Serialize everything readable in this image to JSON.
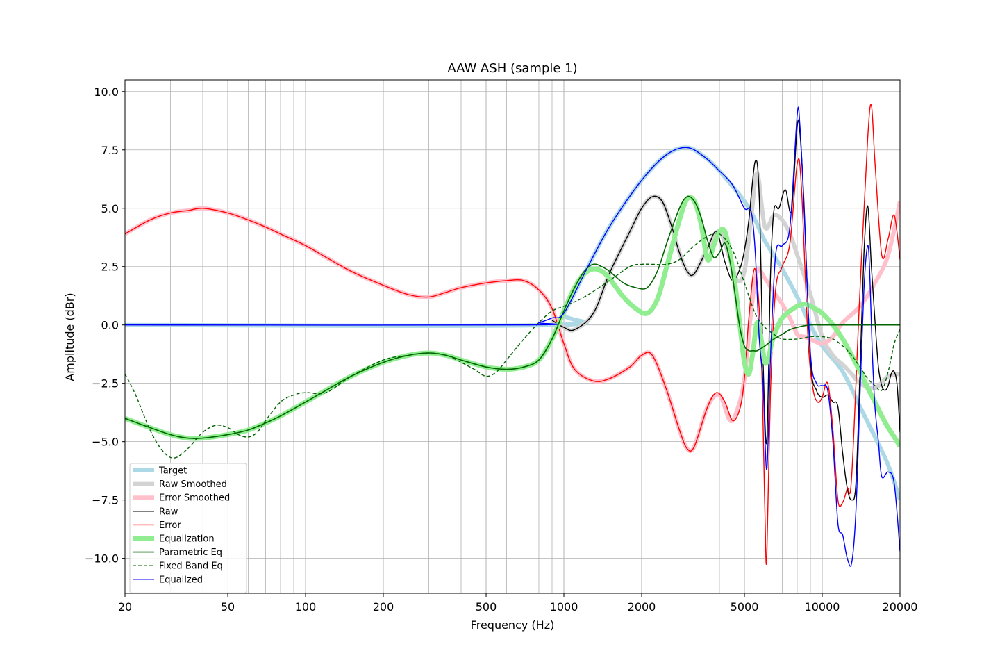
{
  "chart_data": {
    "type": "line",
    "title": "AAW ASH (sample 1)",
    "xlabel": "Frequency (Hz)",
    "ylabel": "Amplitude (dBr)",
    "xscale": "log",
    "xlim": [
      20,
      20000
    ],
    "ylim": [
      -11.5,
      10.5
    ],
    "grid": true,
    "legend_position": "lower-left",
    "x_ticks": [
      20,
      50,
      100,
      200,
      500,
      1000,
      2000,
      5000,
      10000,
      20000
    ],
    "x_tick_labels": [
      "20",
      "50",
      "100",
      "200",
      "500",
      "1000",
      "2000",
      "5000",
      "10000",
      "20000"
    ],
    "y_ticks": [
      -10,
      -7.5,
      -5,
      -2.5,
      0,
      2.5,
      5,
      7.5,
      10
    ],
    "y_tick_labels": [
      "−10.0",
      "−7.5",
      "−5.0",
      "−2.5",
      "0.0",
      "2.5",
      "5.0",
      "7.5",
      "10.0"
    ],
    "series": [
      {
        "name": "Target",
        "color": "#add8e6",
        "width": 6,
        "dash": "",
        "x": [
          20,
          900,
          1000,
          1200,
          1500,
          2000,
          2500,
          3000,
          3500,
          4000,
          5000,
          5500,
          6000,
          7000,
          8000,
          9000,
          10000,
          12000,
          14000,
          16000,
          18000,
          20000
        ],
        "y": [
          0,
          0,
          0.5,
          2.2,
          4.2,
          6.2,
          7.3,
          7.6,
          7.2,
          6.6,
          5.3,
          4.5,
          3.6,
          2.4,
          1.2,
          0,
          -0.9,
          -2.0,
          -3.5,
          -4.8,
          -6.0,
          -7.5
        ]
      },
      {
        "name": "Raw Smoothed",
        "color": "#d3d3d3",
        "width": 6,
        "dash": "",
        "x": [
          900,
          1000,
          1100,
          1300,
          1500,
          1800,
          2000,
          2200,
          2400,
          2600,
          2800,
          3000,
          3200,
          3600,
          4000,
          4400,
          4700,
          5000,
          5300,
          5600,
          6000,
          6500,
          7000,
          7500,
          8000,
          9000,
          10000,
          11000,
          12000,
          13000,
          14000,
          16000,
          18000,
          20000
        ],
        "y": [
          0.2,
          -0.1,
          -0.2,
          0.5,
          2.2,
          4.0,
          5.0,
          5.5,
          5.3,
          4.3,
          3.1,
          2.3,
          2.2,
          3.3,
          4.0,
          2.8,
          1.9,
          2.3,
          4.5,
          6.5,
          4.2,
          4.7,
          4.5,
          3.9,
          3.0,
          1.3,
          -0.5,
          -1.3,
          -1.7,
          -2.1,
          -2.5,
          -2.7,
          -2.2,
          -2.1
        ]
      },
      {
        "name": "Error Smoothed",
        "color": "#ffc0cb",
        "width": 6,
        "dash": "",
        "x": [
          20,
          25,
          30,
          35,
          40,
          50,
          60,
          70,
          80,
          100,
          120,
          150,
          200,
          250,
          300,
          350,
          400,
          500,
          600,
          700,
          800,
          900,
          1000,
          1100,
          1300,
          1500,
          1800,
          2000,
          2200,
          2500,
          2800,
          3000,
          3200,
          3600,
          4000,
          4400,
          4700,
          5000,
          5300,
          5600,
          6000,
          6500,
          7000,
          7500,
          8000,
          8500,
          9000,
          10000,
          11000,
          12000,
          14000,
          16000,
          18000,
          20000
        ],
        "y": [
          3.9,
          4.5,
          4.8,
          4.9,
          5.0,
          4.8,
          4.5,
          4.2,
          3.9,
          3.4,
          2.9,
          2.3,
          1.7,
          1.3,
          1.2,
          1.4,
          1.6,
          1.8,
          1.9,
          1.9,
          1.5,
          0.7,
          -0.8,
          -1.9,
          -2.4,
          -2.3,
          -1.8,
          -1.3,
          -1.3,
          -2.8,
          -4.5,
          -5.3,
          -5.2,
          -3.5,
          -3.0,
          -4.1,
          -3.6,
          -2.3,
          0.5,
          2.3,
          2.0,
          1.4,
          0.9,
          0.3,
          -0.4,
          -0.5,
          -0.6,
          -0.8,
          -0.5,
          0.1,
          0.8,
          1.8,
          3.0,
          5.3
        ]
      },
      {
        "name": "Raw",
        "color": "#000000",
        "width": 1.4,
        "dash": "",
        "x": [
          900,
          1000,
          1100,
          1300,
          1500,
          1800,
          2000,
          2200,
          2400,
          2600,
          2800,
          3000,
          3200,
          3600,
          3900,
          4200,
          4500,
          4800,
          5000,
          5200,
          5500,
          5700,
          5900,
          6100,
          6300,
          6500,
          6800,
          7200,
          7600,
          8000,
          8200,
          8500,
          9000,
          9500,
          10000,
          10500,
          11000,
          11500,
          12000,
          12500,
          13000,
          13500,
          14000,
          14500,
          15000,
          15500,
          16000,
          16500,
          17000,
          17500,
          18000,
          18500,
          19000,
          19500,
          20000
        ],
        "y": [
          0.2,
          -0.1,
          -0.2,
          0.5,
          2.2,
          4.0,
          5.0,
          5.5,
          5.3,
          4.3,
          3.1,
          2.3,
          2.2,
          3.3,
          4.0,
          2.7,
          1.9,
          2.4,
          3.2,
          4.5,
          7.0,
          5.6,
          -1.5,
          -5.0,
          2.0,
          4.9,
          5.0,
          5.8,
          4.9,
          8.5,
          8.2,
          5.2,
          -1.5,
          -2.8,
          -3.1,
          -3.0,
          -3.3,
          -3.5,
          -5.5,
          -7.0,
          -7.5,
          -6.8,
          -2.0,
          3.0,
          5.1,
          2.5,
          0.2,
          -1.8,
          -2.6,
          -2.8,
          -2.6,
          -2.1,
          -2.0,
          -2.6,
          -4.6
        ]
      },
      {
        "name": "Error",
        "color": "#ff0000",
        "width": 1.4,
        "dash": "",
        "x": [
          20,
          25,
          30,
          35,
          40,
          50,
          60,
          70,
          80,
          100,
          120,
          150,
          200,
          250,
          300,
          350,
          400,
          500,
          600,
          700,
          800,
          900,
          1000,
          1100,
          1300,
          1500,
          1800,
          2000,
          2200,
          2500,
          2800,
          3000,
          3200,
          3600,
          3900,
          4200,
          4500,
          4800,
          5000,
          5200,
          5500,
          5800,
          6000,
          6100,
          6300,
          6600,
          7000,
          7500,
          8000,
          8300,
          8800,
          9200,
          9600,
          10000,
          10500,
          11000,
          11500,
          12000,
          12500,
          13000,
          14000,
          15000,
          15500,
          16000,
          17000,
          18000,
          19000,
          20000
        ],
        "y": [
          3.9,
          4.5,
          4.8,
          4.9,
          5.0,
          4.8,
          4.5,
          4.2,
          3.9,
          3.4,
          2.9,
          2.3,
          1.7,
          1.3,
          1.2,
          1.4,
          1.6,
          1.8,
          1.9,
          1.9,
          1.5,
          0.7,
          -0.8,
          -1.9,
          -2.4,
          -2.3,
          -1.8,
          -1.3,
          -1.3,
          -2.8,
          -4.5,
          -5.3,
          -5.2,
          -3.5,
          -2.9,
          -3.3,
          -4.1,
          -3.6,
          -2.3,
          0.3,
          2.4,
          -1.0,
          -8.0,
          -10.0,
          -3.0,
          1.5,
          2.5,
          3.5,
          6.9,
          6.0,
          -0.5,
          -2.7,
          -3.3,
          -3.1,
          -2.5,
          -4.5,
          -7.5,
          -7.6,
          -7.0,
          -6.5,
          1.5,
          8.0,
          9.4,
          7.0,
          3.0,
          3.7,
          4.7,
          2.8
        ]
      },
      {
        "name": "Equalization",
        "color": "#90ee90",
        "width": 7,
        "dash": "",
        "x": [
          20,
          25,
          30,
          35,
          40,
          50,
          60,
          70,
          80,
          100,
          120,
          150,
          200,
          250,
          300,
          350,
          400,
          500,
          600,
          700,
          800,
          900,
          1000,
          1100,
          1200,
          1300,
          1400,
          1500,
          1700,
          1900,
          2100,
          2300,
          2500,
          2800,
          3000,
          3200,
          3400,
          3600,
          3800,
          4000,
          4200,
          4400,
          4600,
          4800,
          5000,
          5200,
          5400,
          5600,
          5800,
          6000,
          6200,
          6400,
          6700,
          7000,
          7500,
          8000,
          8500,
          9000,
          10000,
          11000,
          12000,
          13000,
          14000,
          15000,
          16000,
          17000,
          18000,
          19000,
          20000
        ],
        "y": [
          -4.0,
          -4.4,
          -4.7,
          -4.85,
          -4.85,
          -4.7,
          -4.5,
          -4.2,
          -3.9,
          -3.3,
          -2.8,
          -2.2,
          -1.6,
          -1.3,
          -1.2,
          -1.3,
          -1.5,
          -1.8,
          -1.9,
          -1.8,
          -1.5,
          -0.6,
          0.6,
          1.6,
          2.2,
          2.4,
          2.3,
          2.0,
          1.2,
          0.7,
          0.5,
          1.1,
          2.5,
          4.5,
          5.4,
          5.3,
          4.3,
          2.8,
          3.4,
          4.0,
          4.0,
          3.0,
          1.7,
          0.0,
          -1.6,
          -2.1,
          -1.1,
          0.1,
          -0.6,
          -1.6,
          -1.4,
          -0.7,
          -0.1,
          0.3,
          0.6,
          0.8,
          0.9,
          0.8,
          0.5,
          0.0,
          -0.6,
          -1.3,
          -2.0,
          -2.7,
          -3.3,
          -3.9,
          -4.4,
          -4.8,
          -5.2
        ]
      },
      {
        "name": "Parametric Eq",
        "color": "#006400",
        "width": 1.6,
        "dash": "",
        "x": [
          20,
          25,
          30,
          35,
          40,
          50,
          60,
          70,
          80,
          100,
          120,
          150,
          200,
          250,
          300,
          350,
          400,
          500,
          600,
          700,
          800,
          900,
          1000,
          1100,
          1200,
          1300,
          1400,
          1500,
          1700,
          1900,
          2100,
          2300,
          2500,
          2800,
          3000,
          3200,
          3400,
          3600,
          3800,
          4000,
          4200,
          4400,
          4600,
          4800,
          5000,
          5200,
          5400,
          5600,
          6000,
          6500,
          7000,
          7500,
          8000,
          9000,
          10000,
          12000,
          15000,
          20000
        ],
        "y": [
          -4.0,
          -4.4,
          -4.7,
          -4.85,
          -4.85,
          -4.7,
          -4.5,
          -4.2,
          -3.9,
          -3.3,
          -2.8,
          -2.2,
          -1.6,
          -1.3,
          -1.2,
          -1.3,
          -1.5,
          -1.8,
          -1.9,
          -1.8,
          -1.5,
          -0.6,
          0.6,
          1.6,
          2.3,
          2.6,
          2.5,
          2.3,
          1.8,
          1.6,
          1.6,
          2.3,
          3.5,
          5.0,
          5.5,
          5.3,
          4.6,
          3.6,
          2.9,
          3.1,
          3.5,
          2.7,
          1.3,
          -0.1,
          -0.9,
          -1.1,
          -1.1,
          -1.1,
          -0.9,
          -0.6,
          -0.4,
          -0.2,
          -0.1,
          0.0,
          0.0,
          0.0,
          0.0,
          0.0
        ]
      },
      {
        "name": "Fixed Band Eq",
        "color": "#006400",
        "width": 1.4,
        "dash": "5,3",
        "x": [
          20,
          22,
          25,
          28,
          31,
          35,
          40,
          45,
          50,
          55,
          60,
          65,
          70,
          80,
          90,
          100,
          120,
          150,
          200,
          250,
          300,
          350,
          400,
          450,
          500,
          550,
          600,
          700,
          800,
          900,
          1000,
          1200,
          1500,
          1800,
          2000,
          2200,
          2500,
          2800,
          3200,
          3600,
          4000,
          4500,
          5000,
          5500,
          6000,
          6500,
          7000,
          8000,
          9000,
          10000,
          11000,
          12000,
          13000,
          14000,
          15000,
          16000,
          17000,
          18000,
          19000,
          20000
        ],
        "y": [
          -2.1,
          -3.0,
          -4.5,
          -5.4,
          -5.7,
          -5.3,
          -4.6,
          -4.3,
          -4.4,
          -4.7,
          -4.8,
          -4.6,
          -4.1,
          -3.3,
          -3.0,
          -2.9,
          -2.9,
          -2.2,
          -1.5,
          -1.3,
          -1.2,
          -1.3,
          -1.6,
          -1.9,
          -2.2,
          -2.0,
          -1.5,
          -0.6,
          0.1,
          0.6,
          0.8,
          1.2,
          1.9,
          2.5,
          2.6,
          2.6,
          2.6,
          2.8,
          3.4,
          3.8,
          3.9,
          3.2,
          1.8,
          0.5,
          -0.1,
          -0.4,
          -0.6,
          -0.6,
          -0.5,
          -0.5,
          -0.6,
          -0.9,
          -1.3,
          -1.8,
          -2.3,
          -2.6,
          -2.8,
          -2.0,
          -0.8,
          -0.2
        ]
      },
      {
        "name": "Equalized",
        "color": "#0000ff",
        "width": 1.4,
        "dash": "",
        "x": [
          20,
          700,
          800,
          900,
          1000,
          1200,
          1500,
          2000,
          2500,
          3000,
          3500,
          4000,
          4500,
          5000,
          5300,
          5500,
          5700,
          5900,
          6100,
          6300,
          6600,
          7000,
          7500,
          8000,
          8200,
          8500,
          9000,
          9500,
          10000,
          10500,
          11000,
          11500,
          12000,
          12500,
          13000,
          13500,
          14000,
          14500,
          15000,
          15300,
          15600,
          16000,
          16500,
          17000,
          18000,
          19000,
          20000
        ],
        "y": [
          0,
          0,
          0.1,
          0.3,
          0.5,
          2.2,
          4.2,
          6.2,
          7.3,
          7.6,
          7.2,
          6.6,
          6.0,
          5.0,
          4.9,
          3.2,
          -0.5,
          -2.5,
          -6.2,
          -1.5,
          3.0,
          3.4,
          4.2,
          9.0,
          8.5,
          5.0,
          -1.2,
          -2.5,
          -2.6,
          -2.8,
          -5.0,
          -8.5,
          -9.0,
          -10.0,
          -10.2,
          -8.0,
          -3.0,
          1.5,
          3.4,
          2.0,
          -1.0,
          -3.5,
          -5.0,
          -6.5,
          -6.3,
          -6.8,
          -9.7
        ]
      }
    ]
  }
}
